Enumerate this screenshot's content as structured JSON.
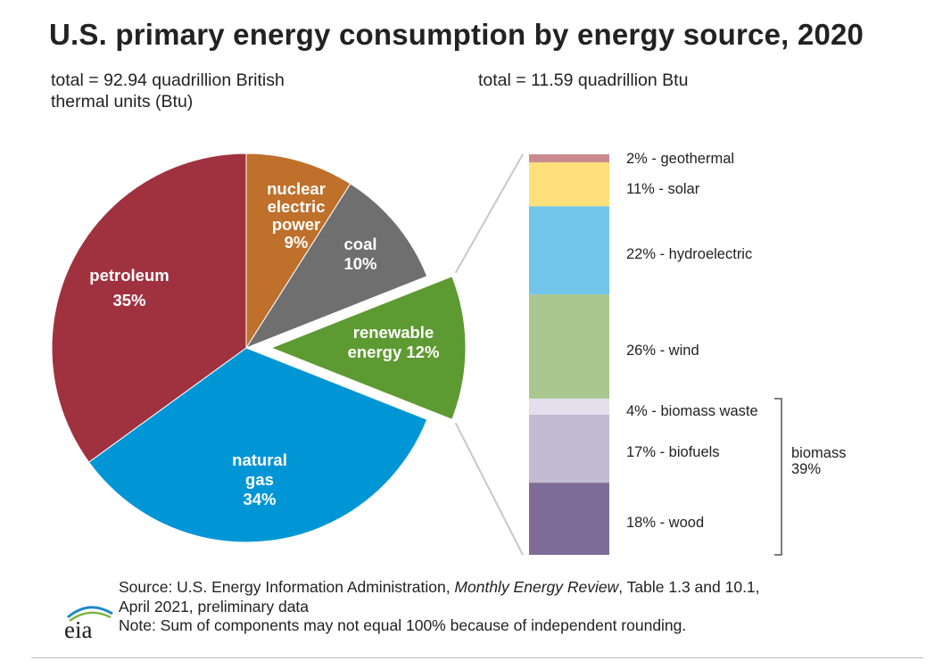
{
  "title": "U.S. primary energy consumption by energy source, 2020",
  "subtitle_left": "total = 92.94 quadrillion British thermal units (Btu)",
  "subtitle_right": "total = 11.59 quadrillion Btu",
  "chart_data": [
    {
      "type": "pie",
      "slices": [
        {
          "name": "nuclear electric power",
          "label_lines": [
            "nuclear",
            "electric",
            "power",
            "9%"
          ],
          "value": 9,
          "color": "#bf702b"
        },
        {
          "name": "coal",
          "label_lines": [
            "coal",
            "10%"
          ],
          "value": 10,
          "color": "#6f6f6f"
        },
        {
          "name": "renewable energy",
          "label_lines": [
            "renewable",
            "energy 12%"
          ],
          "value": 12,
          "color": "#5e9a32",
          "exploded": true
        },
        {
          "name": "natural gas",
          "label_lines": [
            "natural",
            "gas",
            "34%"
          ],
          "value": 34,
          "color": "#0096d6"
        },
        {
          "name": "petroleum",
          "label_lines": [
            "petroleum",
            "35%"
          ],
          "value": 35,
          "color": "#a03240"
        }
      ]
    },
    {
      "type": "bar",
      "stacked": true,
      "segments": [
        {
          "name": "geothermal",
          "label": "2% - geothermal",
          "value": 2,
          "color": "#c98a8f"
        },
        {
          "name": "solar",
          "label": "11% - solar",
          "value": 11,
          "color": "#ffe07a"
        },
        {
          "name": "hydroelectric",
          "label": "22% - hydroelectric",
          "value": 22,
          "color": "#72c5ea"
        },
        {
          "name": "wind",
          "label": "26% - wind",
          "value": 26,
          "color": "#a9c68f"
        },
        {
          "name": "biomass waste",
          "label": "4% - biomass waste",
          "value": 4,
          "color": "#e3e0ec"
        },
        {
          "name": "biofuels",
          "label": "17% - biofuels",
          "value": 17,
          "color": "#c2bbd1"
        },
        {
          "name": "wood",
          "label": "18% - wood",
          "value": 18,
          "color": "#7e6c98"
        }
      ],
      "group_annotation": {
        "lines": [
          "biomass",
          "39%"
        ],
        "value": 39
      }
    }
  ],
  "footer": {
    "source_prefix": "Source: U.S. Energy Information Administration, ",
    "source_italic": "Monthly Energy Review",
    "source_suffix": ", Table 1.3 and 10.1,",
    "source_line2": "April 2021, preliminary data",
    "note": "Note: Sum of components may not equal 100% because of independent rounding."
  },
  "logo_text": "eia",
  "colors": {
    "connector": "#c8c8c8",
    "bracket": "#555555",
    "text": "#222222"
  }
}
